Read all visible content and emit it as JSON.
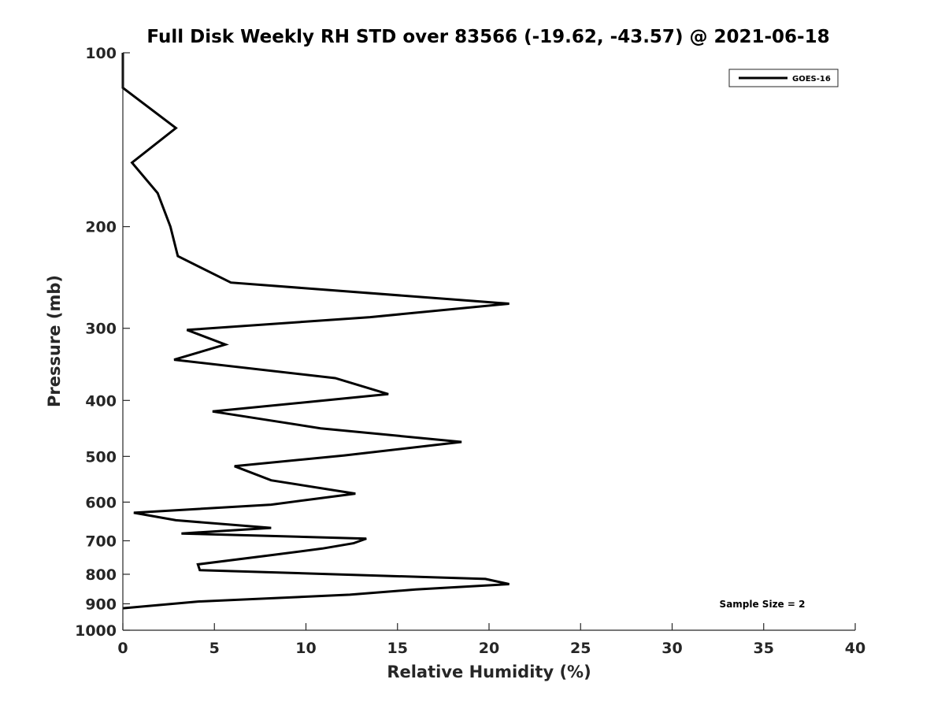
{
  "chart_data": {
    "type": "line",
    "title": "Full Disk Weekly RH STD over 83566 (-19.62, -43.57) @ 2021-06-18",
    "xlabel": "Relative Humidity (%)",
    "ylabel": "Pressure (mb)",
    "xlim": [
      0,
      40
    ],
    "ylim": [
      100,
      1000
    ],
    "yscale": "log",
    "yreversed": true,
    "xticks": [
      0,
      5,
      10,
      15,
      20,
      25,
      30,
      35,
      40
    ],
    "yticks": [
      100,
      200,
      300,
      400,
      500,
      600,
      700,
      800,
      900,
      1000
    ],
    "legend": {
      "position": "top-right",
      "entries": [
        "GOES-16"
      ]
    },
    "annotation": "Sample Size = 2",
    "series": [
      {
        "name": "GOES-16",
        "points": [
          [
            0.0,
            100
          ],
          [
            0.0,
            115
          ],
          [
            2.9,
            135
          ],
          [
            0.5,
            155
          ],
          [
            1.9,
            175
          ],
          [
            2.6,
            200
          ],
          [
            3.0,
            225
          ],
          [
            5.9,
            250
          ],
          [
            21.1,
            272
          ],
          [
            13.5,
            287
          ],
          [
            3.5,
            302
          ],
          [
            5.6,
            320
          ],
          [
            2.8,
            340
          ],
          [
            11.6,
            366
          ],
          [
            14.5,
            390
          ],
          [
            4.9,
            418
          ],
          [
            10.8,
            447
          ],
          [
            18.5,
            472
          ],
          [
            12.1,
            498
          ],
          [
            6.1,
            520
          ],
          [
            8.1,
            550
          ],
          [
            12.7,
            580
          ],
          [
            8.1,
            606
          ],
          [
            0.6,
            626
          ],
          [
            2.9,
            645
          ],
          [
            8.1,
            665
          ],
          [
            3.2,
            680
          ],
          [
            13.3,
            694
          ],
          [
            12.6,
            707
          ],
          [
            10.9,
            722
          ],
          [
            8.0,
            742
          ],
          [
            4.1,
            769
          ],
          [
            4.2,
            787
          ],
          [
            19.8,
            815
          ],
          [
            21.1,
            832
          ],
          [
            16.0,
            850
          ],
          [
            12.4,
            868
          ],
          [
            4.1,
            892
          ],
          [
            0.0,
            916
          ]
        ]
      }
    ]
  }
}
